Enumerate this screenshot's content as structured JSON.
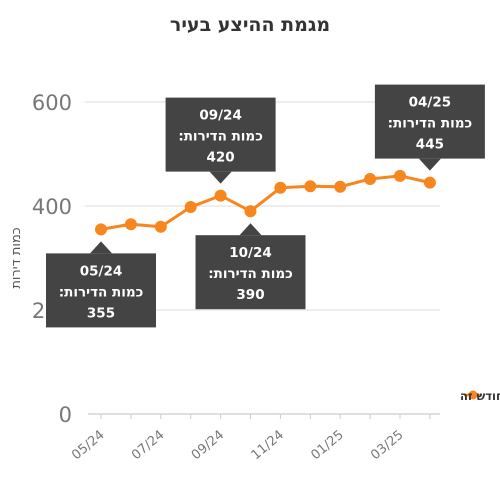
{
  "chart_data": {
    "type": "line",
    "title": "מגמת ההיצע בעיר",
    "xlabel": "",
    "ylabel": "כמות דירות",
    "ylim": [
      0,
      600
    ],
    "y_ticks": [
      "0",
      "200",
      "400",
      "600"
    ],
    "x_tick_labels": [
      "05/24",
      "07/24",
      "09/24",
      "11/24",
      "01/25",
      "03/25"
    ],
    "x": [
      "05/24",
      "06/24",
      "07/24",
      "08/24",
      "09/24",
      "10/24",
      "11/24",
      "12/24",
      "01/25",
      "02/25",
      "03/25",
      "04/25"
    ],
    "series": [
      {
        "name": "כמות הדירות המוצעות בחודש זה",
        "values": [
          355,
          365,
          360,
          398,
          420,
          390,
          435,
          438,
          437,
          452,
          458,
          445
        ]
      }
    ],
    "annotations": [
      {
        "month": "05/24",
        "line1": "05/24",
        "line2": "כמות הדירות:",
        "line3": "355"
      },
      {
        "month": "09/24",
        "line1": "09/24",
        "line2": "כמות הדירות:",
        "line3": "420"
      },
      {
        "month": "10/24",
        "line1": "10/24",
        "line2": "כמות הדירות:",
        "line3": "390"
      },
      {
        "month": "04/25",
        "line1": "04/25",
        "line2": "כמות הדירות:",
        "line3": "445"
      }
    ],
    "grid": true,
    "legend_position": "right",
    "colors": {
      "series": "#f7861e",
      "tooltip": "#444444",
      "axis_text": "#777777",
      "grid": "#e8e8e8"
    }
  }
}
